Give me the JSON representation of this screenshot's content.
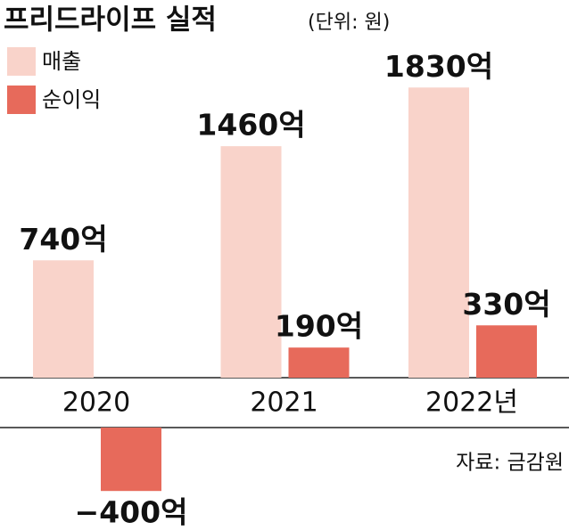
{
  "chart_data": {
    "type": "bar",
    "title": "프리드라이프 실적",
    "subtitle": "(단위: 원)",
    "categories": [
      "2020",
      "2021",
      "2022년"
    ],
    "series": [
      {
        "name": "매출",
        "color": "#f9d3ca",
        "values": [
          740,
          1460,
          1830
        ],
        "value_labels": [
          "740억",
          "1460억",
          "1830억"
        ]
      },
      {
        "name": "순이익",
        "color": "#e76a5b",
        "values": [
          -400,
          190,
          330
        ],
        "value_labels": [
          "−400억",
          "190억",
          "330억"
        ]
      }
    ],
    "source": "자료: 금감원"
  }
}
